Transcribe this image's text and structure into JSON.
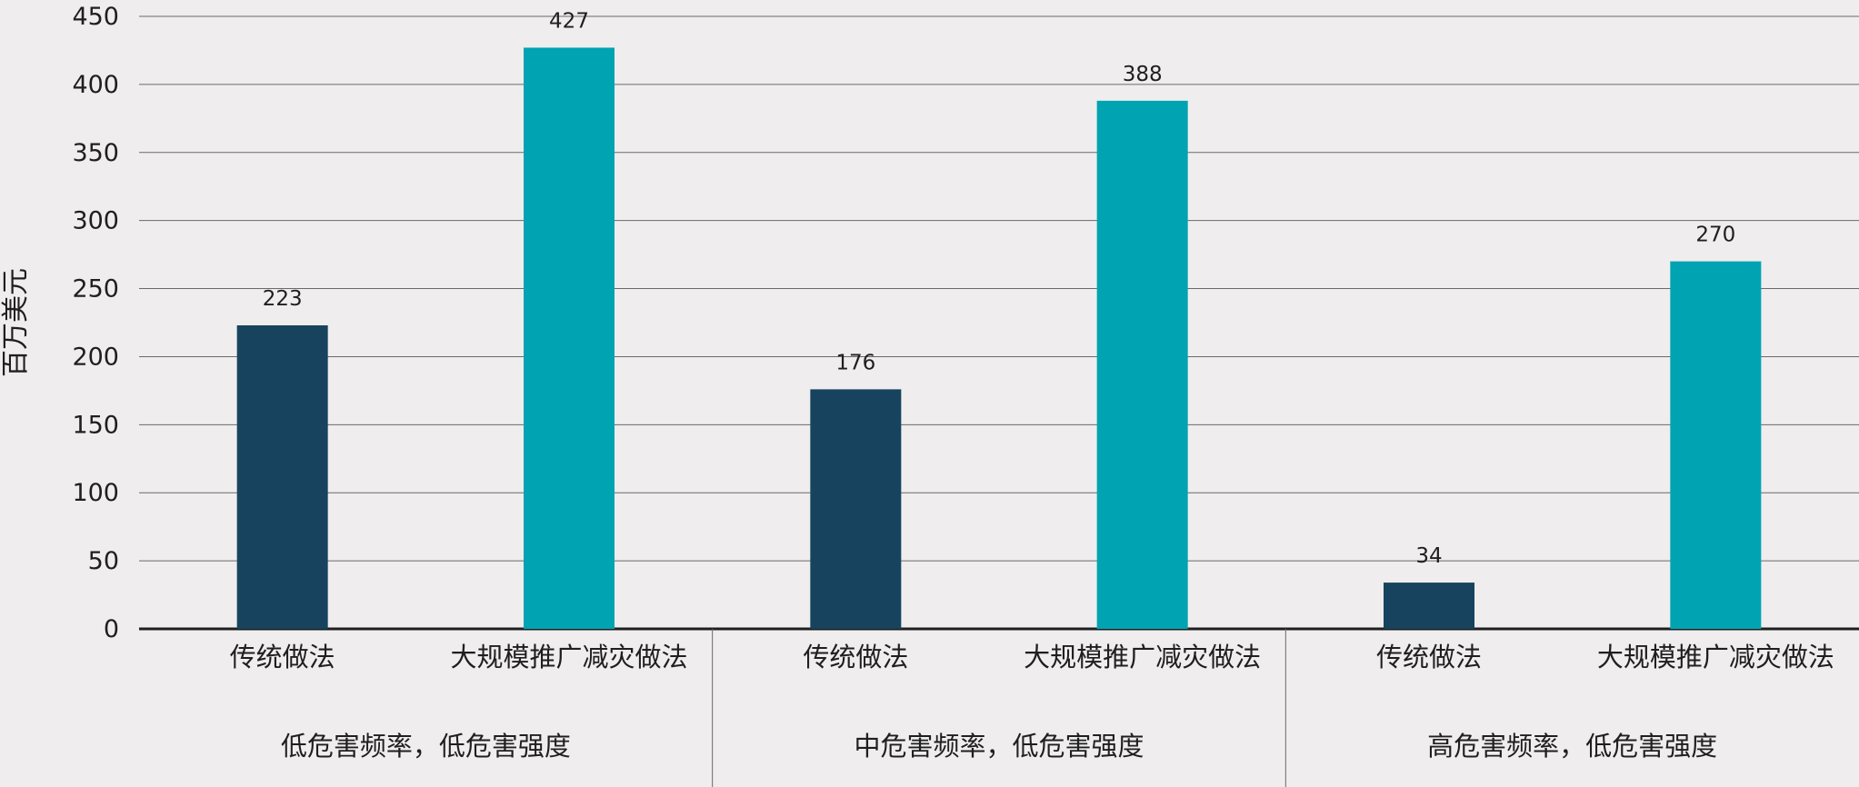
{
  "chart_data": {
    "type": "bar",
    "ylabel": "百万美元",
    "ylim": [
      0,
      450
    ],
    "yticks": [
      0,
      50,
      100,
      150,
      200,
      250,
      300,
      350,
      400,
      450
    ],
    "grid": true,
    "groups": [
      {
        "label": "低危害频率，低危害强度",
        "bars": [
          {
            "category": "传统做法",
            "value": 223,
            "series": "传统做法"
          },
          {
            "category": "大规模推广减灾做法",
            "value": 427,
            "series": "大规模推广减灾做法"
          }
        ]
      },
      {
        "label": "中危害频率，低危害强度",
        "bars": [
          {
            "category": "传统做法",
            "value": 176,
            "series": "传统做法"
          },
          {
            "category": "大规模推广减灾做法",
            "value": 388,
            "series": "大规模推广减灾做法"
          }
        ]
      },
      {
        "label": "高危害频率，低危害强度",
        "bars": [
          {
            "category": "传统做法",
            "value": 34,
            "series": "传统做法"
          },
          {
            "category": "大规模推广减灾做法",
            "value": 270,
            "series": "大规模推广减灾做法"
          }
        ]
      }
    ],
    "colors": {
      "传统做法": "#17435e",
      "大规模推广减灾做法": "#00a3b2"
    }
  }
}
